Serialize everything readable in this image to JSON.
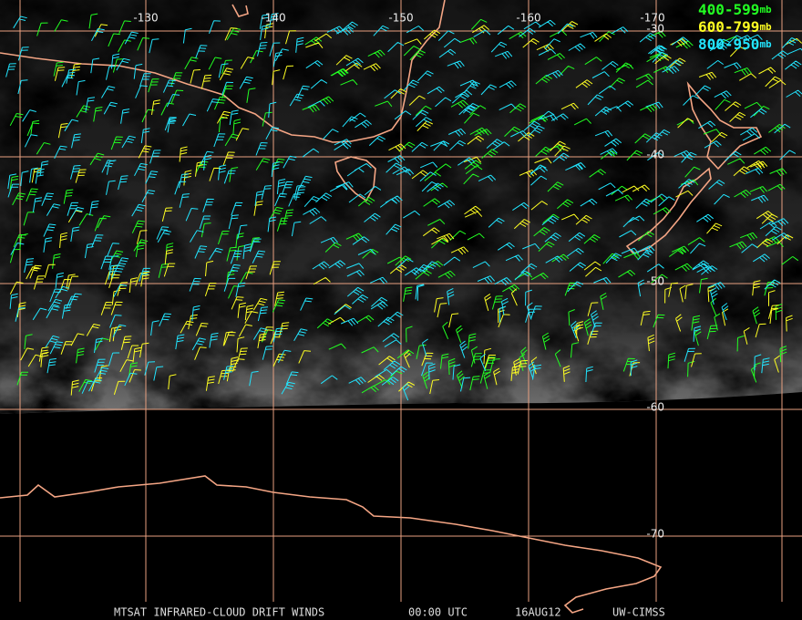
{
  "map": {
    "longitude_labels": [
      "-130",
      "-140",
      "-150",
      "-160",
      "-170"
    ],
    "latitude_labels": [
      "-30",
      "-40",
      "-50",
      "-60",
      "-70"
    ],
    "legend": [
      {
        "range": "400-599",
        "unit": "mb",
        "color": "#22ff22"
      },
      {
        "range": "600-799",
        "unit": "mb",
        "color": "#ffff22"
      },
      {
        "range": "800-950",
        "unit": "mb",
        "color": "#22e5ff"
      }
    ],
    "footer": {
      "product": "MTSAT INFRARED-CLOUD DRIFT WINDS",
      "time": "00:00 UTC",
      "date": "16AUG12",
      "source": "UW-CIMSS"
    }
  }
}
